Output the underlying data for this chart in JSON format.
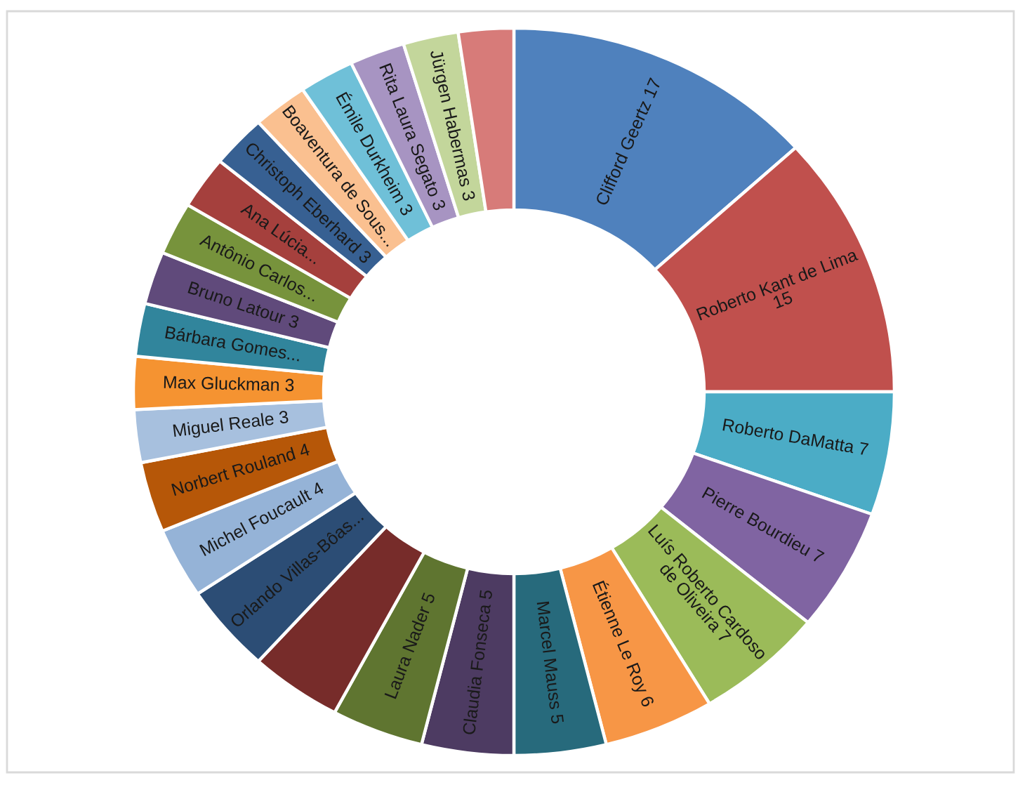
{
  "chart_data": {
    "type": "donut",
    "categories": [
      "Clifford Geertz",
      "Roberto Kant de Lima",
      "Roberto DaMatta",
      "Pierre Bourdieu",
      "Luís Roberto Cardoso de Oliveira",
      "Étienne Le Roy",
      "Marcel Mauss",
      "Claudia Fonseca",
      "Laura Nader",
      null,
      "Orlando Villas-Bôas...",
      "Michel Foucault",
      "Norbert Rouland",
      "Miguel Reale",
      "Max Gluckman",
      "Bárbara Gomes...",
      "Bruno Latour",
      "Antônio Carlos...",
      "Ana Lúcia...",
      "Christoph Eberhard",
      "Boaventura de Sous...",
      "Émile Durkheim",
      "Rita Laura Segato",
      "Jürgen Habermas",
      null
    ],
    "values": [
      17,
      15,
      7,
      7,
      7,
      6,
      5,
      5,
      5,
      5,
      5,
      4,
      4,
      3,
      3,
      3,
      3,
      3,
      3,
      3,
      3,
      3,
      3,
      3,
      3
    ],
    "value_labels": [
      "17",
      "15",
      "7",
      "7",
      "7",
      "6",
      "5",
      "5",
      "5",
      null,
      null,
      "4",
      "4",
      "3",
      "3",
      null,
      "3",
      null,
      null,
      "3",
      null,
      "3",
      "3",
      "3",
      null
    ],
    "colors": [
      "#4f81bd",
      "#c0504d",
      "#4bacc6",
      "#8064a2",
      "#9bbb59",
      "#f79646",
      "#276a7c",
      "#4d3b62",
      "#5f7530",
      "#772c2a",
      "#2c4d75",
      "#95b3d7",
      "#b65708",
      "#a7c0de",
      "#f59331",
      "#31859c",
      "#604a7b",
      "#77933c",
      "#a5403d",
      "#376092",
      "#fac090",
      "#6fc0d8",
      "#a794c2",
      "#c3d69b",
      "#d77b79"
    ]
  }
}
